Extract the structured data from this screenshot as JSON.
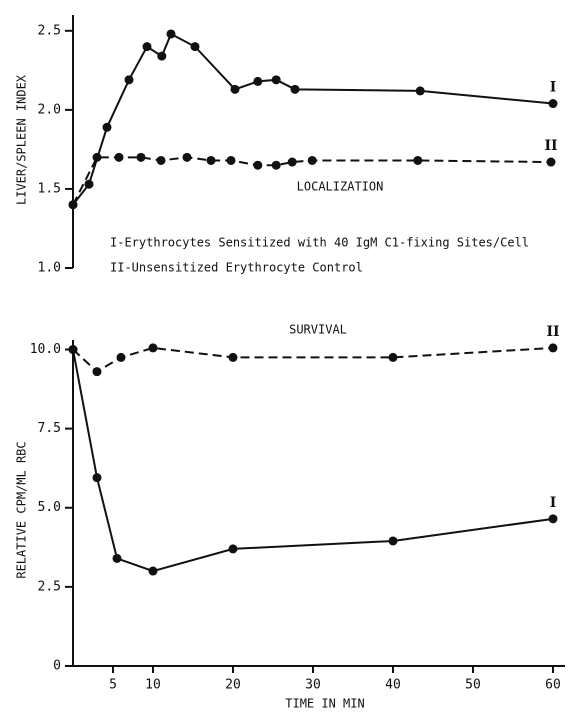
{
  "chart_data": [
    {
      "type": "line",
      "ylabel": "LIVER/SPLEEN INDEX",
      "annotations": [
        "LOCALIZATION",
        "I-Erythrocytes Sensitized with 40 IgM C1-fixing Sites/Cell",
        "II-Unsensitized Erythrocyte Control"
      ],
      "xlim": [
        0,
        62
      ],
      "ylim": [
        1.0,
        2.6
      ],
      "yticks": [
        {
          "value": 1.0,
          "label": "1.0"
        },
        1.5,
        {
          "value": 2.0,
          "label": "2.0"
        },
        2.5
      ],
      "series": [
        {
          "name": "I",
          "color": "#111111",
          "dashed": false,
          "x": [
            0,
            2,
            4.25,
            7,
            9.25,
            11.1,
            12.25,
            15.25,
            20.25,
            23.1,
            25.4,
            27.75,
            43.4,
            60
          ],
          "values": [
            1.4,
            1.53,
            1.89,
            2.19,
            2.4,
            2.34,
            2.48,
            2.4,
            2.13,
            2.18,
            2.19,
            2.13,
            2.12,
            2.04
          ]
        },
        {
          "name": "II",
          "color": "#111111",
          "dashed": true,
          "x": [
            0,
            3,
            5.75,
            8.5,
            11,
            14.25,
            17.25,
            19.75,
            23.1,
            25.4,
            27.4,
            29.9,
            43.1,
            59.75
          ],
          "values": [
            1.4,
            1.7,
            1.7,
            1.7,
            1.68,
            1.7,
            1.68,
            1.68,
            1.65,
            1.65,
            1.67,
            1.68,
            1.68,
            1.67
          ]
        }
      ]
    },
    {
      "type": "line",
      "ylabel": "RELATIVE CPM/ML RBC",
      "xlabel": "TIME IN MIN",
      "annotations": [
        "SURVIVAL"
      ],
      "xlim": [
        0,
        62
      ],
      "ylim": [
        0,
        10.3
      ],
      "xticks": [
        5,
        10,
        20,
        30,
        40,
        50,
        60
      ],
      "yticks": [
        0,
        2.5,
        {
          "value": 5.0,
          "label": "5.0"
        },
        7.5,
        {
          "value": 10.0,
          "label": "10.0"
        }
      ],
      "series": [
        {
          "name": "I",
          "color": "#111111",
          "dashed": false,
          "x": [
            0,
            3,
            5.5,
            10,
            20,
            40,
            60
          ],
          "values": [
            10.0,
            5.95,
            3.4,
            3.0,
            3.7,
            3.95,
            4.65
          ]
        },
        {
          "name": "II",
          "color": "#111111",
          "dashed": true,
          "x": [
            0,
            3,
            6,
            10,
            20,
            40,
            60
          ],
          "values": [
            10.0,
            9.3,
            9.75,
            10.05,
            9.75,
            9.75,
            10.05
          ]
        }
      ]
    }
  ]
}
